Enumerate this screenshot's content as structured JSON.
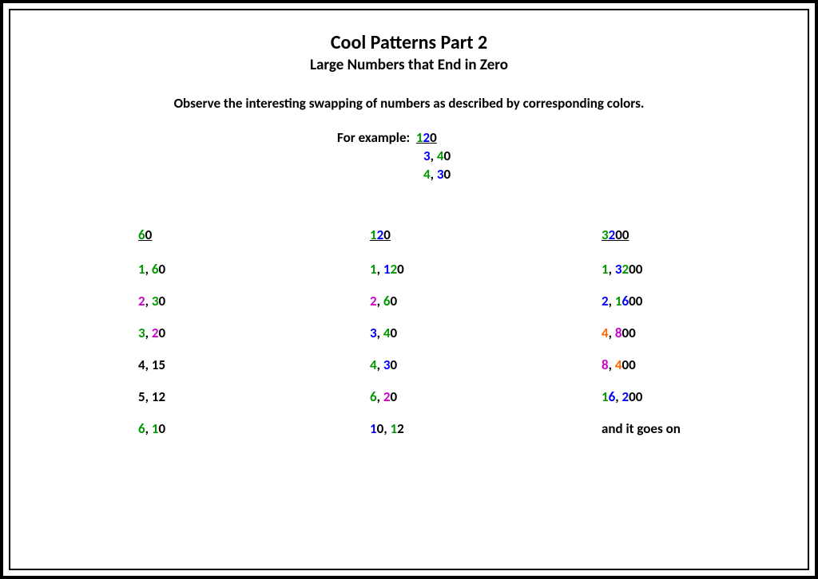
{
  "colors": {
    "black": "#000000",
    "green": "#009900",
    "blue": "#0000ff",
    "magenta": "#cc00cc",
    "orange": "#ff6600"
  },
  "header": {
    "title": "Cool Patterns Part 2",
    "subtitle": "Large Numbers that End in Zero",
    "instructions": "Observe the interesting swapping of numbers as described by corresponding colors."
  },
  "example": {
    "label": "For example:  ",
    "lines": [
      [
        {
          "t": "1",
          "c": "green"
        },
        {
          "t": "2",
          "c": "blue"
        },
        {
          "t": "0",
          "c": "black"
        }
      ],
      [
        {
          "t": "3",
          "c": "blue"
        },
        {
          "t": ", ",
          "c": "black"
        },
        {
          "t": "4",
          "c": "green"
        },
        {
          "t": "0",
          "c": "black"
        }
      ],
      [
        {
          "t": "4",
          "c": "green"
        },
        {
          "t": ", ",
          "c": "black"
        },
        {
          "t": "3",
          "c": "blue"
        },
        {
          "t": "0",
          "c": "black"
        }
      ]
    ]
  },
  "columns": [
    {
      "header": [
        {
          "t": "6",
          "c": "green"
        },
        {
          "t": "0",
          "c": "black"
        }
      ],
      "rows": [
        [
          {
            "t": "1",
            "c": "green"
          },
          {
            "t": ", ",
            "c": "black"
          },
          {
            "t": "6",
            "c": "green"
          },
          {
            "t": "0",
            "c": "black"
          }
        ],
        [
          {
            "t": "2",
            "c": "magenta"
          },
          {
            "t": ", ",
            "c": "black"
          },
          {
            "t": "3",
            "c": "green"
          },
          {
            "t": "0",
            "c": "black"
          }
        ],
        [
          {
            "t": "3",
            "c": "green"
          },
          {
            "t": ", ",
            "c": "black"
          },
          {
            "t": "2",
            "c": "magenta"
          },
          {
            "t": "0",
            "c": "black"
          }
        ],
        [
          {
            "t": "4, 15",
            "c": "black"
          }
        ],
        [
          {
            "t": "5, 12",
            "c": "black"
          }
        ],
        [
          {
            "t": "6",
            "c": "green"
          },
          {
            "t": ", ",
            "c": "black"
          },
          {
            "t": "1",
            "c": "green"
          },
          {
            "t": "0",
            "c": "black"
          }
        ]
      ]
    },
    {
      "header": [
        {
          "t": "1",
          "c": "green"
        },
        {
          "t": "2",
          "c": "blue"
        },
        {
          "t": "0",
          "c": "black"
        }
      ],
      "rows": [
        [
          {
            "t": "1",
            "c": "green"
          },
          {
            "t": ", ",
            "c": "black"
          },
          {
            "t": "1",
            "c": "blue"
          },
          {
            "t": "2",
            "c": "green"
          },
          {
            "t": "0",
            "c": "black"
          }
        ],
        [
          {
            "t": "2",
            "c": "magenta"
          },
          {
            "t": ", ",
            "c": "black"
          },
          {
            "t": "6",
            "c": "green"
          },
          {
            "t": "0",
            "c": "black"
          }
        ],
        [
          {
            "t": "3",
            "c": "blue"
          },
          {
            "t": ", ",
            "c": "black"
          },
          {
            "t": "4",
            "c": "green"
          },
          {
            "t": "0",
            "c": "black"
          }
        ],
        [
          {
            "t": "4",
            "c": "green"
          },
          {
            "t": ", ",
            "c": "black"
          },
          {
            "t": "3",
            "c": "blue"
          },
          {
            "t": "0",
            "c": "black"
          }
        ],
        [
          {
            "t": "6",
            "c": "green"
          },
          {
            "t": ", ",
            "c": "black"
          },
          {
            "t": "2",
            "c": "magenta"
          },
          {
            "t": "0",
            "c": "black"
          }
        ],
        [
          {
            "t": "1",
            "c": "blue"
          },
          {
            "t": "0",
            "c": "black"
          },
          {
            "t": ", ",
            "c": "black"
          },
          {
            "t": "1",
            "c": "green"
          },
          {
            "t": "2",
            "c": "black"
          }
        ]
      ]
    },
    {
      "header": [
        {
          "t": "3",
          "c": "green"
        },
        {
          "t": "2",
          "c": "blue"
        },
        {
          "t": "00",
          "c": "black"
        }
      ],
      "rows": [
        [
          {
            "t": "1",
            "c": "green"
          },
          {
            "t": ", ",
            "c": "black"
          },
          {
            "t": "3",
            "c": "blue"
          },
          {
            "t": "2",
            "c": "green"
          },
          {
            "t": "00",
            "c": "black"
          }
        ],
        [
          {
            "t": "2",
            "c": "blue"
          },
          {
            "t": ", ",
            "c": "black"
          },
          {
            "t": "1",
            "c": "green"
          },
          {
            "t": "6",
            "c": "blue"
          },
          {
            "t": "00",
            "c": "black"
          }
        ],
        [
          {
            "t": "4",
            "c": "orange"
          },
          {
            "t": ", ",
            "c": "black"
          },
          {
            "t": "8",
            "c": "magenta"
          },
          {
            "t": "00",
            "c": "black"
          }
        ],
        [
          {
            "t": "8",
            "c": "magenta"
          },
          {
            "t": ", ",
            "c": "black"
          },
          {
            "t": "4",
            "c": "orange"
          },
          {
            "t": "00",
            "c": "black"
          }
        ],
        [
          {
            "t": "1",
            "c": "green"
          },
          {
            "t": "6",
            "c": "blue"
          },
          {
            "t": ", ",
            "c": "black"
          },
          {
            "t": "2",
            "c": "blue"
          },
          {
            "t": "00",
            "c": "black"
          }
        ],
        [
          {
            "t": "and it goes on",
            "c": "black"
          }
        ]
      ]
    }
  ]
}
